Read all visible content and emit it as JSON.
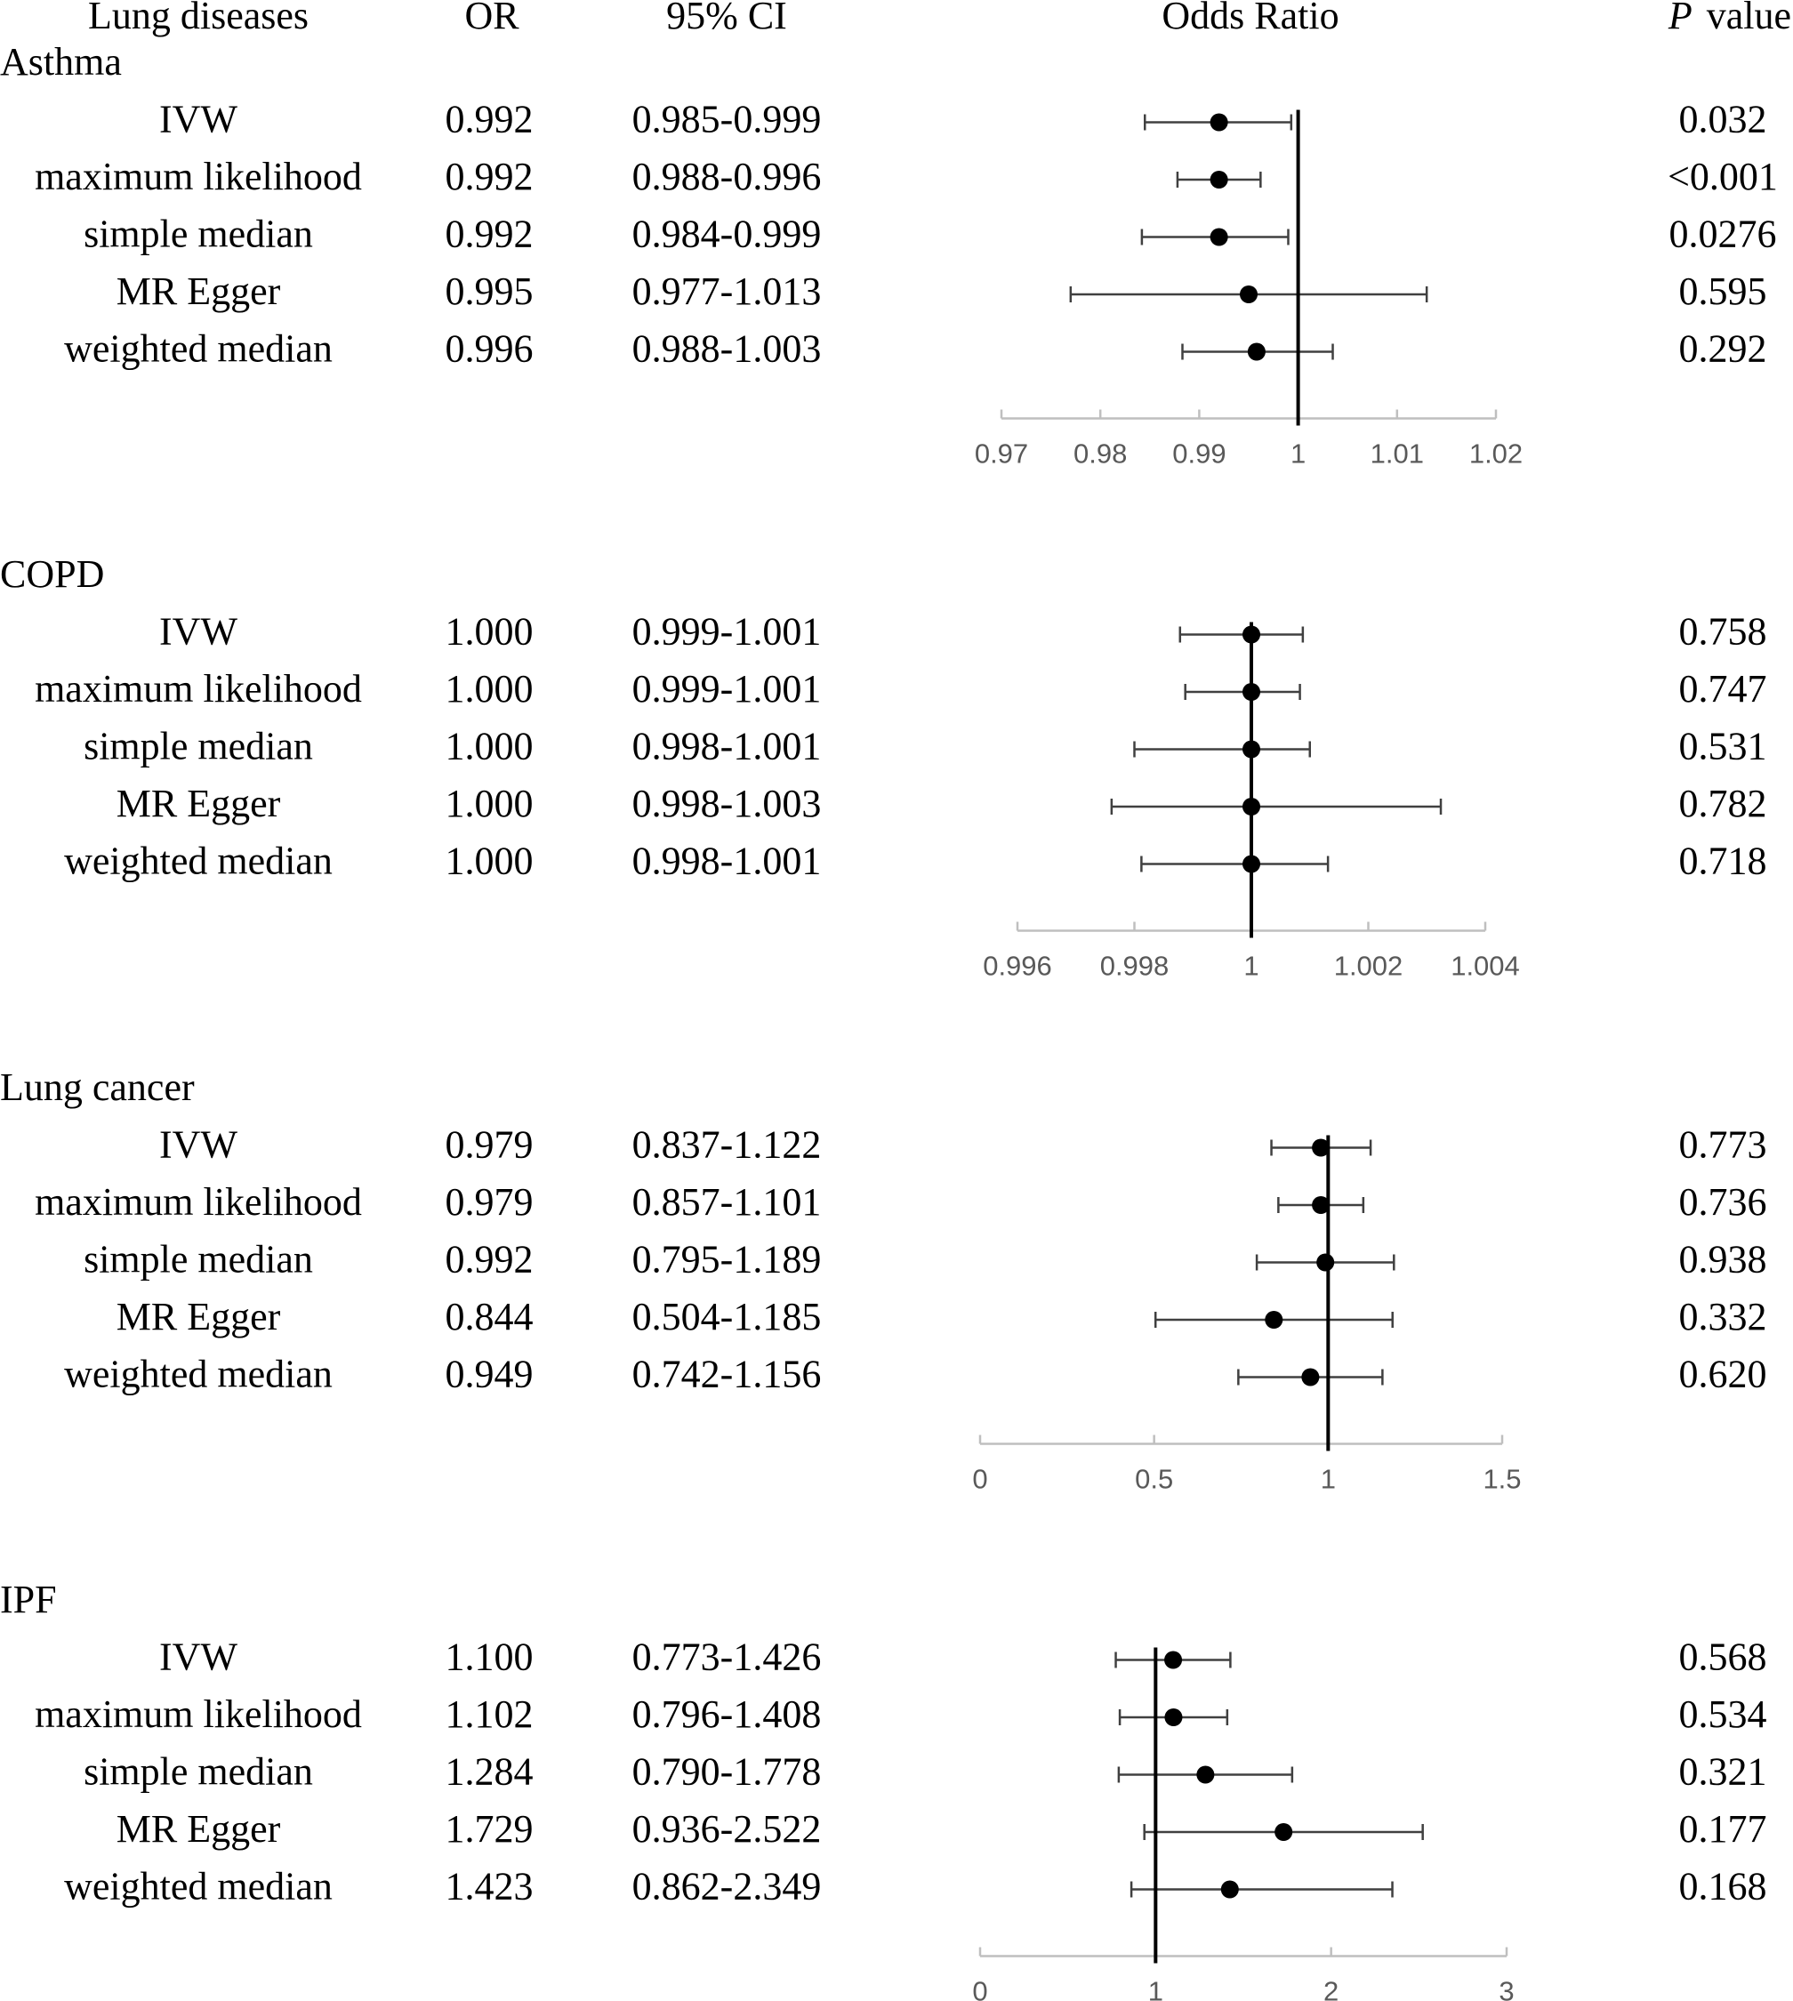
{
  "headers": {
    "disease": "Lung diseases",
    "or": "OR",
    "ci": "95% CI",
    "odds_ratio": "Odds Ratio",
    "p_italic": "P",
    "p_rest": "value"
  },
  "chart_data": [
    {
      "type": "forest",
      "title": "Asthma",
      "xlim": [
        0.97,
        1.02
      ],
      "ticks": [
        0.97,
        0.98,
        0.99,
        1,
        1.01,
        1.02
      ],
      "tick_labels": [
        "0.97",
        "0.98",
        "0.99",
        "1",
        "1.01",
        "1.02"
      ],
      "reference": 1,
      "rows": [
        {
          "method": "IVW",
          "or_text": "0.992",
          "ci_text": "0.985-0.999",
          "p_text": "0.032",
          "or": 0.992,
          "lo": 0.9845,
          "hi": 0.9993
        },
        {
          "method": "maximum likelihood",
          "or_text": "0.992",
          "ci_text": "0.988-0.996",
          "p_text": "<0.001",
          "or": 0.992,
          "lo": 0.9878,
          "hi": 0.9962
        },
        {
          "method": "simple median",
          "or_text": "0.992",
          "ci_text": "0.984-0.999",
          "p_text": "0.0276",
          "or": 0.992,
          "lo": 0.9842,
          "hi": 0.999
        },
        {
          "method": "MR Egger",
          "or_text": "0.995",
          "ci_text": "0.977-1.013",
          "p_text": "0.595",
          "or": 0.995,
          "lo": 0.977,
          "hi": 1.013
        },
        {
          "method": "weighted median",
          "or_text": "0.996",
          "ci_text": "0.988-1.003",
          "p_text": "0.292",
          "or": 0.9958,
          "lo": 0.9883,
          "hi": 1.0035
        }
      ]
    },
    {
      "type": "forest",
      "title": "COPD",
      "xlim": [
        0.996,
        1.004
      ],
      "ticks": [
        0.996,
        0.998,
        1,
        1.002,
        1.004
      ],
      "tick_labels": [
        "0.996",
        "0.998",
        "1",
        "1.002",
        "1.004"
      ],
      "reference": 1,
      "rows": [
        {
          "method": "IVW",
          "or_text": "1.000",
          "ci_text": "0.999-1.001",
          "p_text": "0.758",
          "or": 1.0,
          "lo": 0.99878,
          "hi": 1.00088
        },
        {
          "method": "maximum likelihood",
          "or_text": "1.000",
          "ci_text": "0.999-1.001",
          "p_text": "0.747",
          "or": 1.0,
          "lo": 0.99887,
          "hi": 1.00083
        },
        {
          "method": "simple median",
          "or_text": "1.000",
          "ci_text": "0.998-1.001",
          "p_text": "0.531",
          "or": 1.0,
          "lo": 0.998,
          "hi": 1.001
        },
        {
          "method": "MR Egger",
          "or_text": "1.000",
          "ci_text": "0.998-1.003",
          "p_text": "0.782",
          "or": 1.0,
          "lo": 0.99761,
          "hi": 1.00324
        },
        {
          "method": "weighted median",
          "or_text": "1.000",
          "ci_text": "0.998-1.001",
          "p_text": "0.718",
          "or": 1.0,
          "lo": 0.99812,
          "hi": 1.00131
        }
      ]
    },
    {
      "type": "forest",
      "title": "Lung cancer",
      "xlim": [
        0,
        1.5
      ],
      "ticks": [
        0,
        0.5,
        1,
        1.5
      ],
      "tick_labels": [
        "0",
        "0.5",
        "1",
        "1.5"
      ],
      "reference": 1,
      "rows": [
        {
          "method": "IVW",
          "or_text": "0.979",
          "ci_text": "0.837-1.122",
          "p_text": "0.773",
          "or": 0.979,
          "lo": 0.837,
          "hi": 1.122
        },
        {
          "method": "maximum likelihood",
          "or_text": "0.979",
          "ci_text": "0.857-1.101",
          "p_text": "0.736",
          "or": 0.979,
          "lo": 0.857,
          "hi": 1.101
        },
        {
          "method": "simple median",
          "or_text": "0.992",
          "ci_text": "0.795-1.189",
          "p_text": "0.938",
          "or": 0.992,
          "lo": 0.795,
          "hi": 1.189
        },
        {
          "method": "MR Egger",
          "or_text": "0.844",
          "ci_text": "0.504-1.185",
          "p_text": "0.332",
          "or": 0.844,
          "lo": 0.504,
          "hi": 1.185
        },
        {
          "method": "weighted median",
          "or_text": "0.949",
          "ci_text": "0.742-1.156",
          "p_text": "0.620",
          "or": 0.949,
          "lo": 0.742,
          "hi": 1.156
        }
      ]
    },
    {
      "type": "forest",
      "title": "IPF",
      "xlim": [
        0,
        3
      ],
      "ticks": [
        0,
        1,
        2,
        3
      ],
      "tick_labels": [
        "0",
        "1",
        "2",
        "3"
      ],
      "reference": 1,
      "rows": [
        {
          "method": "IVW",
          "or_text": "1.100",
          "ci_text": "0.773-1.426",
          "p_text": "0.568",
          "or": 1.1,
          "lo": 0.773,
          "hi": 1.426
        },
        {
          "method": "maximum likelihood",
          "or_text": "1.102",
          "ci_text": "0.796-1.408",
          "p_text": "0.534",
          "or": 1.102,
          "lo": 0.796,
          "hi": 1.408
        },
        {
          "method": "simple median",
          "or_text": "1.284",
          "ci_text": "0.790-1.778",
          "p_text": "0.321",
          "or": 1.284,
          "lo": 0.79,
          "hi": 1.778
        },
        {
          "method": "MR Egger",
          "or_text": "1.729",
          "ci_text": "0.936-2.522",
          "p_text": "0.177",
          "or": 1.729,
          "lo": 0.936,
          "hi": 2.522
        },
        {
          "method": "weighted median",
          "or_text": "1.423",
          "ci_text": "0.862-2.349",
          "p_text": "0.168",
          "or": 1.423,
          "lo": 0.862,
          "hi": 2.349
        }
      ]
    }
  ]
}
